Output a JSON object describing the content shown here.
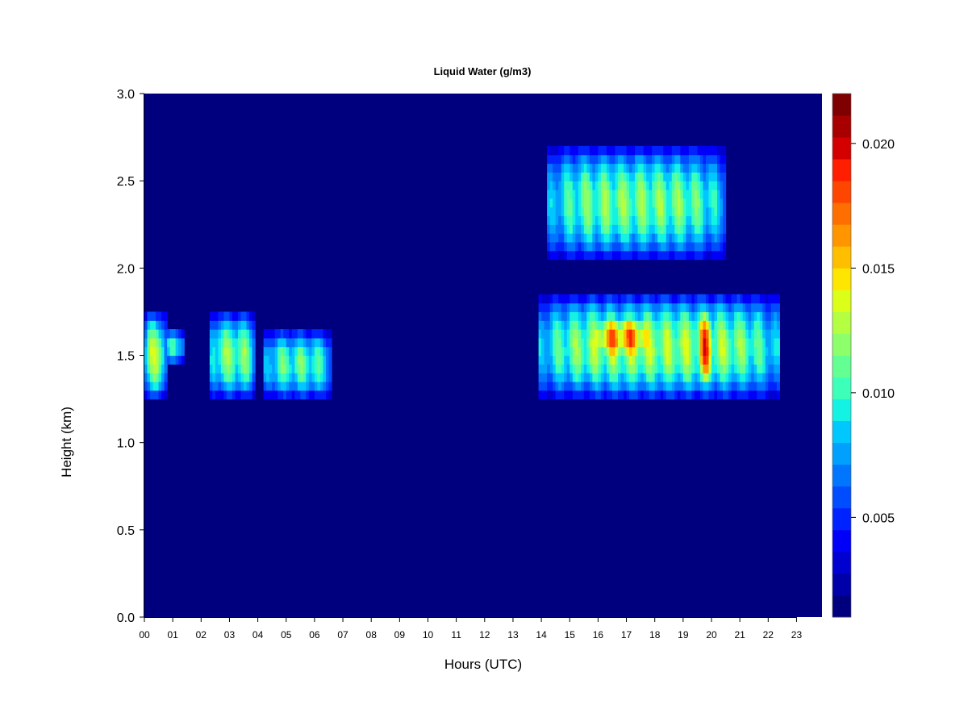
{
  "chart_data": {
    "type": "heatmap",
    "title": "Liquid Water (g/m3)",
    "xlabel": "Hours (UTC)",
    "ylabel": "Height (km)",
    "x_range": [
      0,
      24
    ],
    "y_range": [
      0,
      3
    ],
    "x_ticks": [
      "00",
      "01",
      "02",
      "03",
      "04",
      "05",
      "06",
      "07",
      "08",
      "09",
      "10",
      "11",
      "12",
      "13",
      "14",
      "15",
      "16",
      "17",
      "18",
      "19",
      "20",
      "21",
      "22",
      "23"
    ],
    "y_ticks": [
      "0.0",
      "0.5",
      "1.0",
      "1.5",
      "2.0",
      "2.5",
      "3.0"
    ],
    "colorbar": {
      "range": [
        0.001,
        0.022
      ],
      "ticks": [
        {
          "label": "0.005",
          "value": 0.005
        },
        {
          "label": "0.010",
          "value": 0.01
        },
        {
          "label": "0.015",
          "value": 0.015
        },
        {
          "label": "0.020",
          "value": 0.02
        }
      ],
      "colors": [
        "#00007f",
        "#0000a8",
        "#0000d0",
        "#0000f8",
        "#0022ff",
        "#004cff",
        "#0076ff",
        "#00a0ff",
        "#00c8ff",
        "#14f2e3",
        "#3cffba",
        "#64ff92",
        "#8cff6a",
        "#b4ff42",
        "#dcff1a",
        "#ffe600",
        "#ffbe00",
        "#ff9600",
        "#ff6e00",
        "#ff4600",
        "#ff1e00",
        "#d40000",
        "#a80000",
        "#7f0000"
      ]
    },
    "background_value": 0.001,
    "features": [
      {
        "hours": [
          0.0,
          0.75
        ],
        "height_km": [
          1.25,
          1.75
        ],
        "peak": 0.014
      },
      {
        "hours": [
          0.75,
          1.4
        ],
        "height_km": [
          1.45,
          1.65
        ],
        "peak": 0.011
      },
      {
        "hours": [
          2.3,
          3.9
        ],
        "height_km": [
          1.25,
          1.75
        ],
        "peak": 0.013
      },
      {
        "hours": [
          4.2,
          6.6
        ],
        "height_km": [
          1.25,
          1.65
        ],
        "peak": 0.012
      },
      {
        "hours": [
          13.9,
          22.4
        ],
        "height_km": [
          1.25,
          1.85
        ],
        "peak": 0.014
      },
      {
        "hours": [
          15.8,
          17.9
        ],
        "height_km": [
          1.45,
          1.75
        ],
        "peak": 0.019
      },
      {
        "hours": [
          19.6,
          20.0
        ],
        "height_km": [
          1.3,
          1.8
        ],
        "peak": 0.02
      },
      {
        "hours": [
          14.2,
          20.5
        ],
        "height_km": [
          2.05,
          2.7
        ],
        "peak": 0.013
      }
    ]
  }
}
